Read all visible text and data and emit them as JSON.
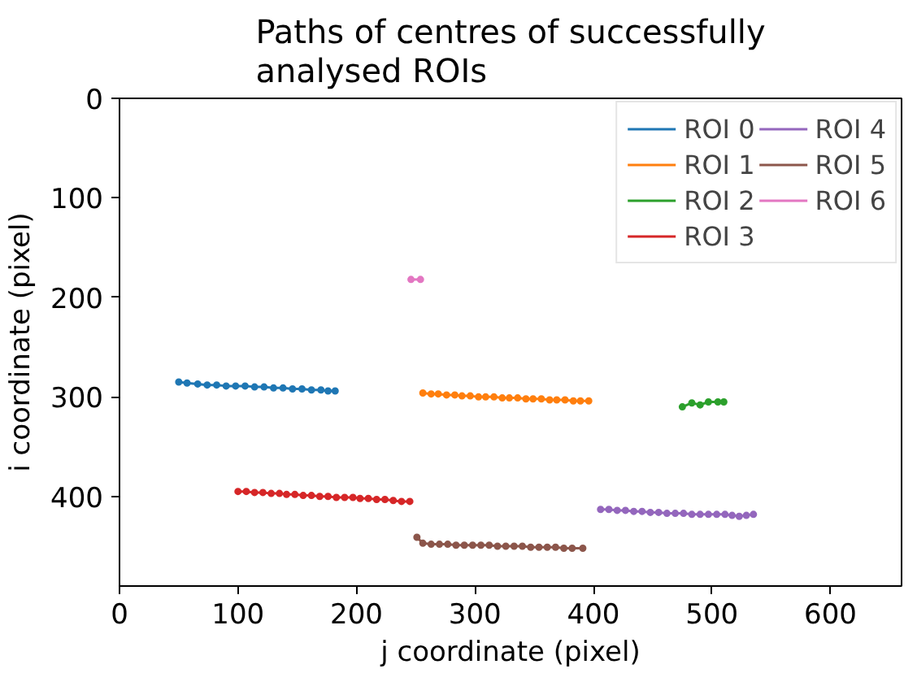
{
  "chart_data": {
    "type": "line",
    "title": "Paths of centres of successfully analysed ROIs",
    "xlabel": "j coordinate (pixel)",
    "ylabel": "i coordinate (pixel)",
    "xlim": [
      0,
      660
    ],
    "ylim": [
      490,
      0
    ],
    "xticks": [
      0,
      100,
      200,
      300,
      400,
      500,
      600
    ],
    "yticks": [
      0,
      100,
      200,
      300,
      400
    ],
    "grid": false,
    "legend": "top right",
    "marker": "circle",
    "line_style": "solid",
    "series": [
      {
        "name": "ROI 0",
        "color": "#1f77b4",
        "x": [
          50,
          57,
          66,
          74,
          82,
          90,
          98,
          106,
          114,
          122,
          130,
          138,
          146,
          154,
          162,
          170,
          176,
          182
        ],
        "values": [
          285,
          286,
          287,
          288,
          288,
          289,
          289,
          289,
          290,
          290,
          291,
          291,
          292,
          292,
          293,
          293,
          294,
          294
        ]
      },
      {
        "name": "ROI 1",
        "color": "#ff7f0e",
        "x": [
          256,
          263,
          269,
          276,
          283,
          289,
          296,
          303,
          309,
          316,
          323,
          329,
          336,
          343,
          349,
          356,
          363,
          369,
          376,
          383,
          389,
          396
        ],
        "values": [
          296,
          297,
          297,
          298,
          298,
          299,
          299,
          300,
          300,
          300,
          301,
          301,
          301,
          302,
          302,
          302,
          303,
          303,
          303,
          304,
          304,
          304
        ]
      },
      {
        "name": "ROI 2",
        "color": "#2ca02c",
        "x": [
          475,
          483,
          490,
          497,
          505,
          510
        ],
        "values": [
          310,
          306,
          308,
          305,
          305,
          305
        ]
      },
      {
        "name": "ROI 3",
        "color": "#d62728",
        "x": [
          100,
          107,
          114,
          121,
          128,
          135,
          141,
          148,
          155,
          162,
          169,
          176,
          183,
          190,
          197,
          203,
          210,
          217,
          224,
          231,
          238,
          245
        ],
        "values": [
          395,
          395,
          396,
          396,
          397,
          397,
          398,
          398,
          399,
          399,
          400,
          400,
          401,
          401,
          401,
          402,
          402,
          403,
          403,
          404,
          405,
          405
        ]
      },
      {
        "name": "ROI 4",
        "color": "#9467bd",
        "x": [
          406,
          413,
          420,
          427,
          434,
          441,
          448,
          455,
          462,
          469,
          476,
          483,
          490,
          497,
          504,
          511,
          517,
          523,
          529,
          535
        ],
        "values": [
          413,
          413,
          414,
          414,
          415,
          415,
          416,
          416,
          417,
          417,
          417,
          418,
          418,
          418,
          418,
          418,
          419,
          420,
          419,
          418
        ]
      },
      {
        "name": "ROI 5",
        "color": "#8c564b",
        "x": [
          251,
          256,
          263,
          270,
          277,
          284,
          291,
          298,
          305,
          312,
          319,
          326,
          333,
          340,
          347,
          354,
          361,
          368,
          375,
          382,
          391
        ],
        "values": [
          441,
          447,
          448,
          448,
          448,
          449,
          449,
          449,
          449,
          449,
          450,
          450,
          450,
          450,
          451,
          451,
          451,
          451,
          452,
          452,
          452
        ]
      },
      {
        "name": "ROI 6",
        "color": "#e377c2",
        "x": [
          246,
          254
        ],
        "values": [
          182,
          182
        ]
      }
    ]
  }
}
